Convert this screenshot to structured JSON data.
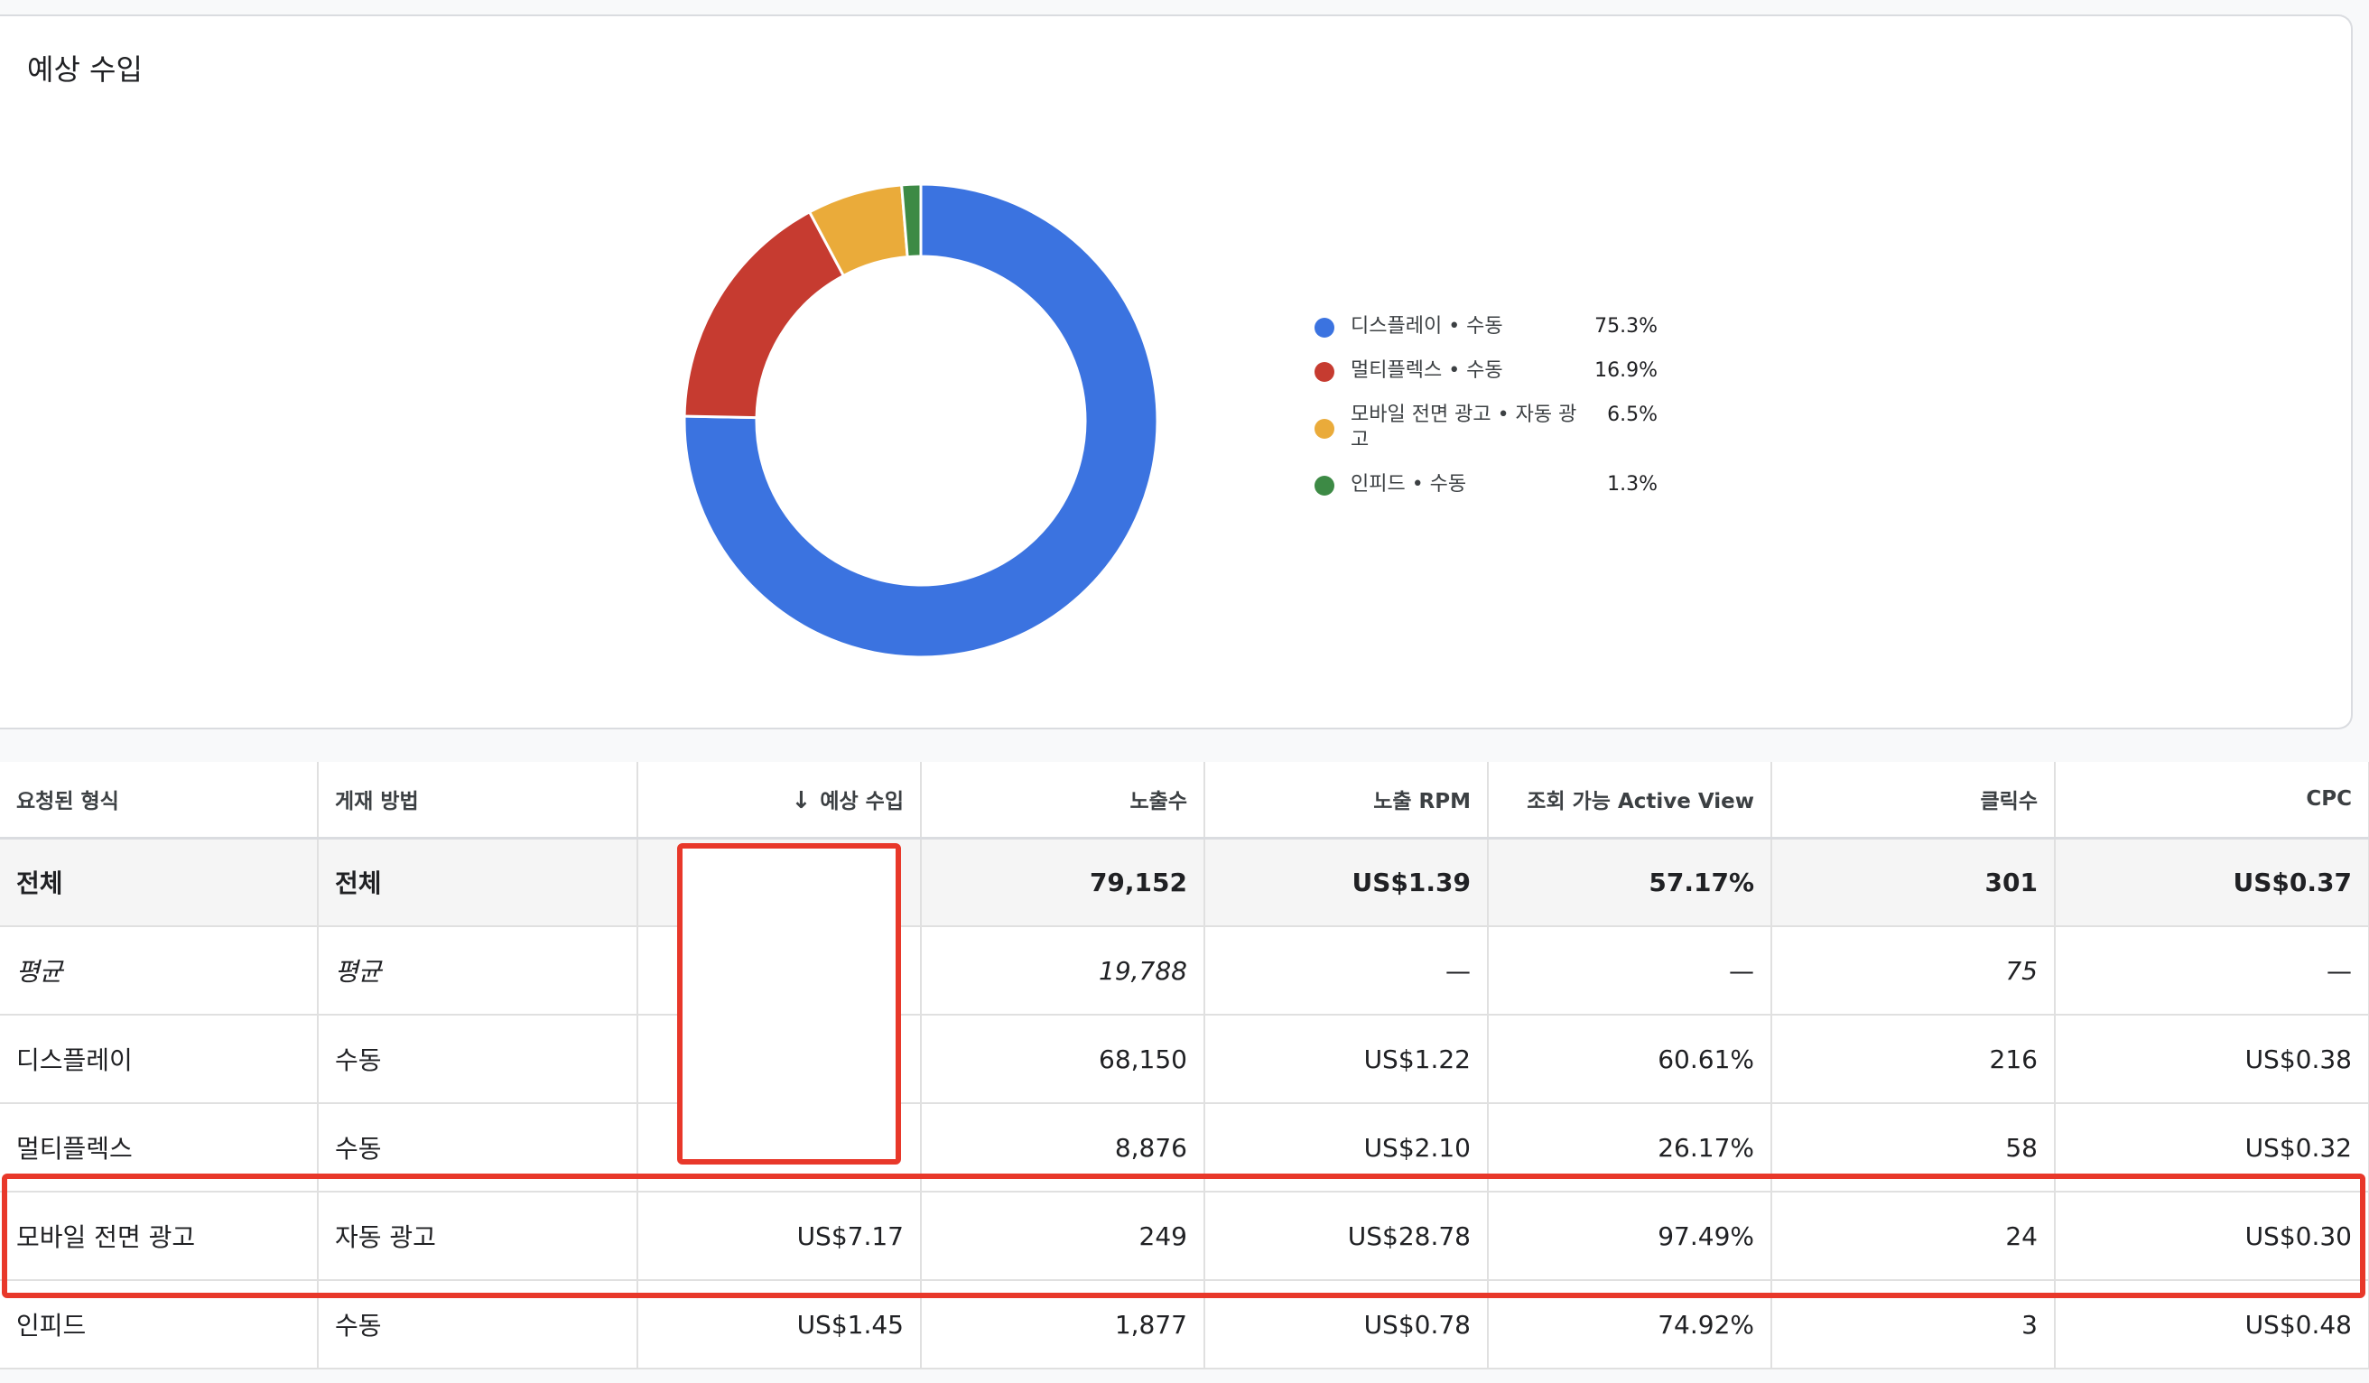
{
  "card": {
    "title": "예상 수입"
  },
  "chart_data": {
    "type": "pie",
    "title": "예상 수입",
    "slices": [
      {
        "label": "디스플레이 • 수동",
        "value": 75.3,
        "value_label": "75.3%",
        "color": "#3b73e0"
      },
      {
        "label": "멀티플렉스 • 수동",
        "value": 16.9,
        "value_label": "16.9%",
        "color": "#c63b30"
      },
      {
        "label": "모바일 전면 광고 • 자동 광고",
        "value": 6.5,
        "value_label": "6.5%",
        "color": "#eaab3a"
      },
      {
        "label": "인피드 • 수동",
        "value": 1.3,
        "value_label": "1.3%",
        "color": "#3d8a45"
      }
    ],
    "legend": "right"
  },
  "table": {
    "headers": {
      "format": "요청된 형식",
      "method": "게재 방법",
      "revenue": "예상 수입",
      "impressions": "노출수",
      "rpm": "노출 RPM",
      "active_view": "조회 가능 Active View",
      "clicks": "클릭수",
      "cpc": "CPC"
    },
    "total": {
      "format": "전체",
      "method": "전체",
      "revenue": "",
      "impressions": "79,152",
      "rpm": "US$1.39",
      "active_view": "57.17%",
      "clicks": "301",
      "cpc": "US$0.37"
    },
    "average": {
      "format": "평균",
      "method": "평균",
      "revenue": "",
      "impressions": "19,788",
      "rpm": "—",
      "active_view": "—",
      "clicks": "75",
      "cpc": "—"
    },
    "rows": [
      {
        "format": "디스플레이",
        "method": "수동",
        "revenue": "",
        "impressions": "68,150",
        "rpm": "US$1.22",
        "active_view": "60.61%",
        "clicks": "216",
        "cpc": "US$0.38"
      },
      {
        "format": "멀티플렉스",
        "method": "수동",
        "revenue": "",
        "impressions": "8,876",
        "rpm": "US$2.10",
        "active_view": "26.17%",
        "clicks": "58",
        "cpc": "US$0.32"
      },
      {
        "format": "모바일 전면 광고",
        "method": "자동 광고",
        "revenue": "US$7.17",
        "impressions": "249",
        "rpm": "US$28.78",
        "active_view": "97.49%",
        "clicks": "24",
        "cpc": "US$0.30"
      },
      {
        "format": "인피드",
        "method": "수동",
        "revenue": "US$1.45",
        "impressions": "1,877",
        "rpm": "US$0.78",
        "active_view": "74.92%",
        "clicks": "3",
        "cpc": "US$0.48"
      }
    ]
  }
}
